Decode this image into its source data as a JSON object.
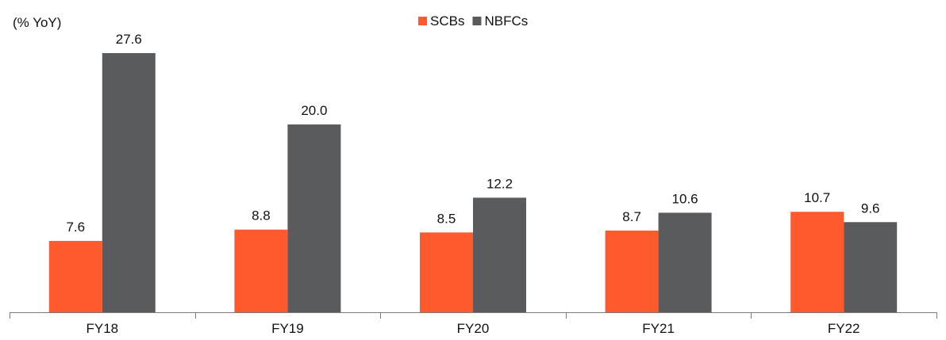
{
  "chart_data": {
    "type": "bar",
    "ylabel": "(% YoY)",
    "categories": [
      "FY18",
      "FY19",
      "FY20",
      "FY21",
      "FY22"
    ],
    "series": [
      {
        "name": "SCBs",
        "values": [
          7.6,
          8.8,
          8.5,
          8.7,
          10.7
        ],
        "color": "#FF5A2E"
      },
      {
        "name": "NBFCs",
        "values": [
          27.6,
          20.0,
          12.2,
          10.6,
          9.6
        ],
        "color": "#5A5B5D"
      }
    ],
    "ylim": [
      0,
      27.6
    ],
    "grid": false,
    "legend": "top-center",
    "data_labels": true
  }
}
